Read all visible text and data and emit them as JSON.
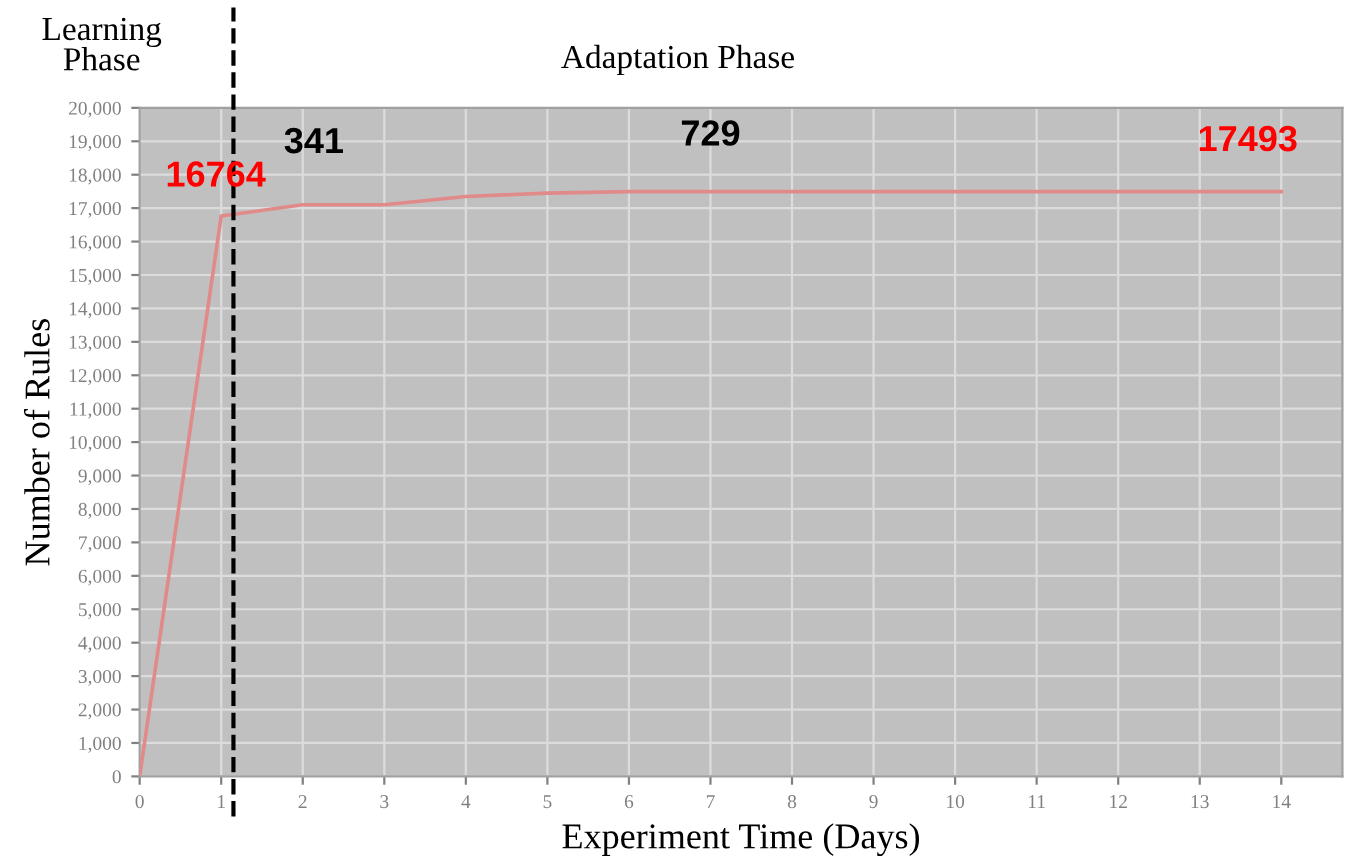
{
  "chart_data": {
    "type": "line",
    "xlabel": "Experiment Time (Days)",
    "ylabel": "Number of Rules",
    "x": [
      0,
      1,
      2,
      3,
      4,
      5,
      6,
      7,
      8,
      9,
      10,
      11,
      12,
      13,
      14
    ],
    "series": [
      {
        "color": "#e08a8a",
        "values": [
          0,
          16764,
          17100,
          17100,
          17350,
          17450,
          17493,
          17493,
          17493,
          17493,
          17493,
          17493,
          17493,
          17493,
          17493
        ]
      }
    ],
    "xlim": [
      0,
      14.75
    ],
    "ylim": [
      0,
      20000
    ],
    "xticks": [
      0,
      1,
      2,
      3,
      4,
      5,
      6,
      7,
      8,
      9,
      10,
      11,
      12,
      13,
      14
    ],
    "yticks": [
      {
        "value": 0,
        "label": "0"
      },
      {
        "value": 1000,
        "label": "1,000"
      },
      {
        "value": 2000,
        "label": "2,000"
      },
      {
        "value": 3000,
        "label": "3,000"
      },
      {
        "value": 4000,
        "label": "4,000"
      },
      {
        "value": 5000,
        "label": "5,000"
      },
      {
        "value": 6000,
        "label": "6,000"
      },
      {
        "value": 7000,
        "label": "7,000"
      },
      {
        "value": 8000,
        "label": "8,000"
      },
      {
        "value": 9000,
        "label": "9,000"
      },
      {
        "value": 10000,
        "label": "10,000"
      },
      {
        "value": 11000,
        "label": "11,000"
      },
      {
        "value": 12000,
        "label": "12,000"
      },
      {
        "value": 13000,
        "label": "13,000"
      },
      {
        "value": 14000,
        "label": "14,000"
      },
      {
        "value": 15000,
        "label": "15,000"
      },
      {
        "value": 16000,
        "label": "16,000"
      },
      {
        "value": 17000,
        "label": "17,000"
      },
      {
        "value": 18000,
        "label": "18,000"
      },
      {
        "value": 19000,
        "label": "19,000"
      },
      {
        "value": 20000,
        "label": "20,000"
      }
    ],
    "ref_lines": [
      {
        "axis": "x",
        "value": 1.15,
        "color": "#000000",
        "line_style": "dashed"
      }
    ],
    "annotations": [
      "Learning Phase",
      "Adaptation Phase",
      {
        "text": "16764",
        "x": 1,
        "y": 16764
      },
      {
        "text": "341",
        "x": 2,
        "y": 17100
      },
      {
        "text": "729",
        "x": 7,
        "y": 17493
      },
      {
        "text": "17493",
        "x": 14,
        "y": 17493
      }
    ],
    "grid": true,
    "marker": "none",
    "line_style": "solid"
  }
}
